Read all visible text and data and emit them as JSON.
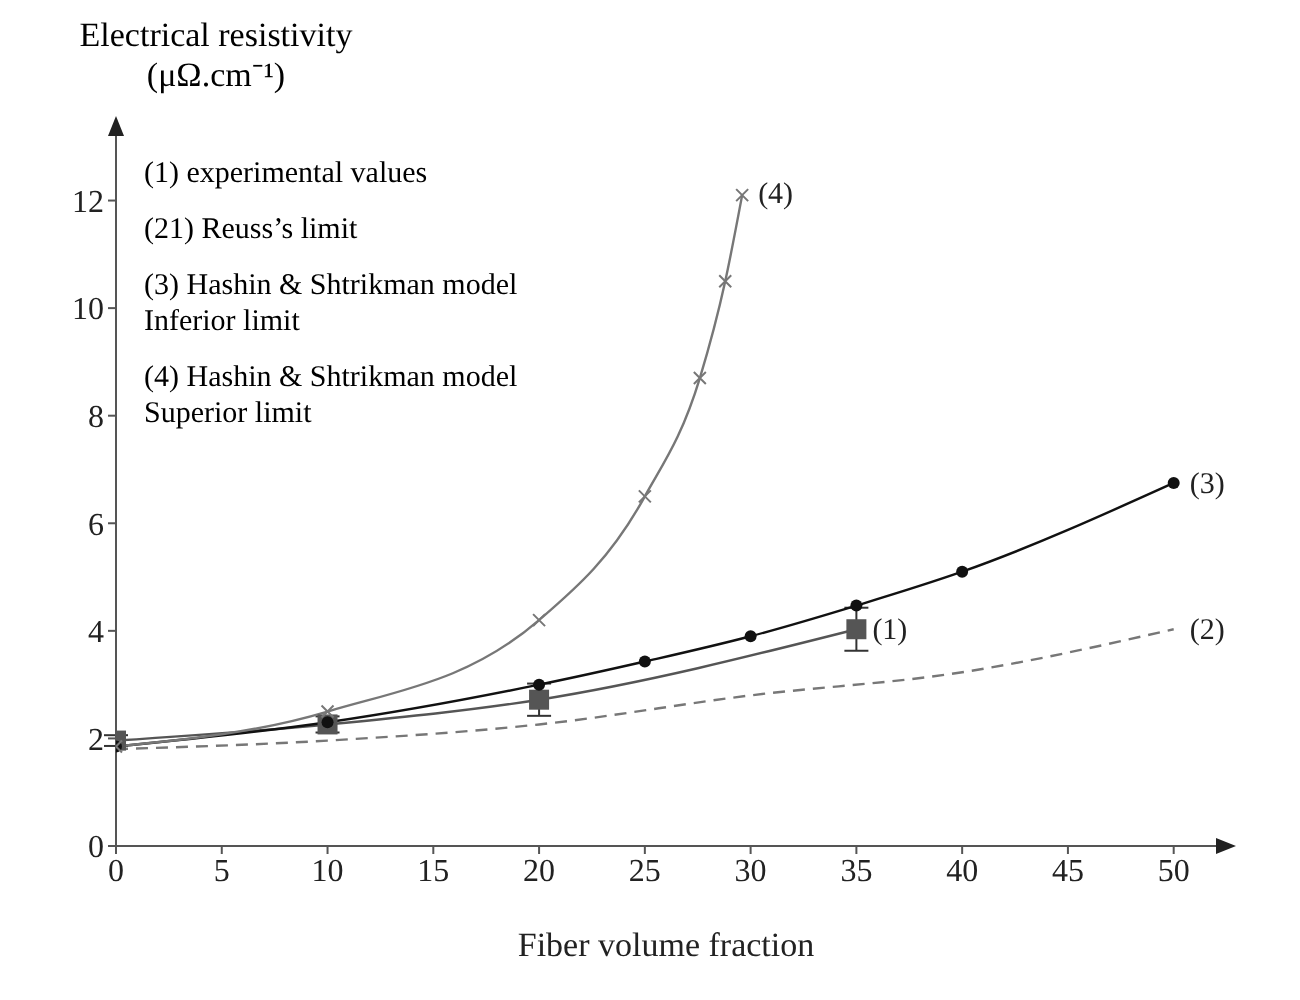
{
  "chart_data": {
    "type": "line",
    "xlabel": "Fiber volume fraction",
    "ylabel": "Electrical resistivity\n(μΩ.cm⁻¹)",
    "xlim": [
      0,
      52
    ],
    "xticks": [
      0,
      5,
      10,
      15,
      20,
      25,
      30,
      35,
      40,
      45,
      50
    ],
    "ylim": [
      0,
      13.2
    ],
    "yticks": [
      0,
      2,
      4,
      6,
      8,
      10,
      12
    ],
    "grid": false,
    "legend": false,
    "annotations": [
      "(1) experimental values",
      "(21) Reuss’s limit",
      "(3) Hashin & Shtrikman model\nInferior limit",
      "(4) Hashin & Shtrikman model\nSuperior limit"
    ],
    "series": [
      {
        "name": "(1)",
        "color": "#555555",
        "marker": "square",
        "line_style": "solid",
        "x": [
          0,
          10,
          20,
          35
        ],
        "values": [
          1.96,
          2.26,
          2.72,
          4.03
        ],
        "errors": [
          0.1,
          0.15,
          0.3,
          0.4
        ]
      },
      {
        "name": "(2)",
        "color": "#777777",
        "marker": "none",
        "line_style": "dashed",
        "x": [
          0,
          10,
          20,
          30,
          40,
          50
        ],
        "values": [
          1.8,
          1.96,
          2.26,
          2.8,
          3.23,
          4.03
        ]
      },
      {
        "name": "(3)",
        "color": "#111111",
        "marker": "circle",
        "line_style": "solid",
        "x": [
          0,
          10,
          20,
          25,
          30,
          35,
          40,
          50
        ],
        "values": [
          1.85,
          2.3,
          3.0,
          3.43,
          3.9,
          4.47,
          5.1,
          6.75
        ]
      },
      {
        "name": "(4)",
        "color": "#777777",
        "marker": "cross",
        "line_style": "solid",
        "x": [
          0,
          10,
          20,
          25,
          27.6,
          28.8,
          29.6
        ],
        "values": [
          1.85,
          2.5,
          4.2,
          6.5,
          8.7,
          10.5,
          12.1
        ]
      }
    ]
  }
}
